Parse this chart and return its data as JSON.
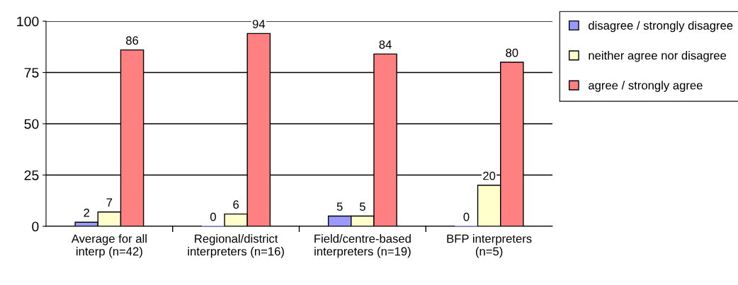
{
  "chart_data": {
    "type": "bar",
    "categories": [
      "Average for all\ninterp (n=42)",
      "Regional/district\ninterpreters (n=16)",
      "Field/centre-based\ninterpreters (n=19)",
      "BFP interpreters\n(n=5)"
    ],
    "series": [
      {
        "name": "disagree / strongly disagree",
        "color": "#9999ff",
        "values": [
          2,
          0,
          5,
          0
        ]
      },
      {
        "name": "neither agree nor disagree",
        "color": "#ffffcc",
        "values": [
          7,
          6,
          5,
          20
        ]
      },
      {
        "name": "agree / strongly agree",
        "color": "#ff8080",
        "values": [
          86,
          94,
          84,
          80
        ]
      }
    ],
    "ylim": [
      0,
      100
    ],
    "yticks": [
      0,
      25,
      50,
      75,
      100
    ],
    "grid": "y",
    "legend": "right",
    "data_labels": true
  }
}
